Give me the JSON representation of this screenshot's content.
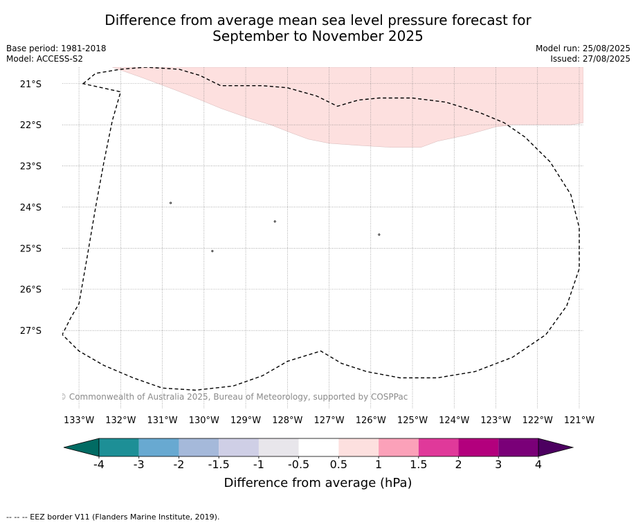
{
  "title": {
    "line1": "Difference from average mean sea level pressure forecast for",
    "line2": "September to November 2025"
  },
  "meta_left": {
    "base_period": "Base period: 1981-2018",
    "model": "Model: ACCESS-S2"
  },
  "meta_right": {
    "model_run": "Model run: 25/08/2025",
    "issued": "Issued: 27/08/2025"
  },
  "map": {
    "lon_range": [
      -133.4,
      -120.9
    ],
    "lat_range": [
      -28.9,
      -20.6
    ],
    "lat_ticks": [
      -21,
      -22,
      -23,
      -24,
      -25,
      -26,
      -27
    ],
    "lat_tick_labels": [
      "21°S",
      "22°S",
      "23°S",
      "24°S",
      "25°S",
      "26°S",
      "27°S"
    ],
    "lon_ticks": [
      -133,
      -132,
      -131,
      -130,
      -129,
      -128,
      -127,
      -126,
      -125,
      -124,
      -123,
      -122,
      -121
    ],
    "lon_tick_labels": [
      "133°W",
      "132°W",
      "131°W",
      "130°W",
      "129°W",
      "128°W",
      "127°W",
      "126°W",
      "125°W",
      "124°W",
      "123°W",
      "122°W",
      "121°W"
    ],
    "gridlines": true,
    "anomaly_region": {
      "category": "0.5 to 1",
      "color": "#fde0df",
      "boundary_lonlat": [
        [
          -132.2,
          -20.6
        ],
        [
          -131.5,
          -20.85
        ],
        [
          -130.7,
          -21.15
        ],
        [
          -130.2,
          -21.35
        ],
        [
          -129.6,
          -21.6
        ],
        [
          -128.9,
          -21.85
        ],
        [
          -128.4,
          -22.0
        ],
        [
          -127.9,
          -22.2
        ],
        [
          -127.5,
          -22.35
        ],
        [
          -127.0,
          -22.45
        ],
        [
          -126.3,
          -22.5
        ],
        [
          -125.5,
          -22.55
        ],
        [
          -124.8,
          -22.55
        ],
        [
          -124.4,
          -22.4
        ],
        [
          -123.7,
          -22.25
        ],
        [
          -123.0,
          -22.05
        ],
        [
          -122.6,
          -22.0
        ],
        [
          -121.8,
          -22.0
        ],
        [
          -121.2,
          -22.0
        ],
        [
          -120.9,
          -21.95
        ],
        [
          -120.9,
          -20.6
        ]
      ]
    },
    "eez_border_lonlat": [
      [
        -132.9,
        -21.0
      ],
      [
        -132.6,
        -20.75
      ],
      [
        -132.0,
        -20.65
      ],
      [
        -131.4,
        -20.6
      ],
      [
        -130.6,
        -20.65
      ],
      [
        -130.1,
        -20.8
      ],
      [
        -129.6,
        -21.05
      ],
      [
        -129.2,
        -21.05
      ],
      [
        -128.6,
        -21.05
      ],
      [
        -128.0,
        -21.1
      ],
      [
        -127.3,
        -21.3
      ],
      [
        -126.8,
        -21.55
      ],
      [
        -126.3,
        -21.4
      ],
      [
        -125.8,
        -21.35
      ],
      [
        -125.0,
        -21.35
      ],
      [
        -124.2,
        -21.45
      ],
      [
        -123.4,
        -21.7
      ],
      [
        -122.8,
        -21.95
      ],
      [
        -122.3,
        -22.3
      ],
      [
        -121.7,
        -22.9
      ],
      [
        -121.2,
        -23.7
      ],
      [
        -121.0,
        -24.5
      ],
      [
        -121.0,
        -25.5
      ],
      [
        -121.3,
        -26.4
      ],
      [
        -121.8,
        -27.1
      ],
      [
        -122.6,
        -27.65
      ],
      [
        -123.5,
        -28.0
      ],
      [
        -124.4,
        -28.15
      ],
      [
        -125.3,
        -28.15
      ],
      [
        -126.1,
        -28.0
      ],
      [
        -126.7,
        -27.8
      ],
      [
        -127.2,
        -27.5
      ],
      [
        -128.0,
        -27.75
      ],
      [
        -128.6,
        -28.1
      ],
      [
        -129.3,
        -28.35
      ],
      [
        -130.2,
        -28.45
      ],
      [
        -131.0,
        -28.4
      ],
      [
        -131.7,
        -28.15
      ],
      [
        -132.4,
        -27.85
      ],
      [
        -133.0,
        -27.5
      ],
      [
        -133.4,
        -27.1
      ],
      [
        -133.2,
        -26.7
      ],
      [
        -133.0,
        -26.35
      ],
      [
        -132.8,
        -25.2
      ],
      [
        -132.6,
        -24.0
      ],
      [
        -132.4,
        -22.9
      ],
      [
        -132.2,
        -21.9
      ],
      [
        -132.0,
        -21.2
      ]
    ],
    "specks_lonlat": [
      [
        -130.8,
        -23.9
      ],
      [
        -128.3,
        -24.35
      ],
      [
        -125.8,
        -24.67
      ],
      [
        -129.8,
        -25.07
      ]
    ],
    "copyright": "© Commonwealth of Australia 2025, Bureau of Meteorology, supported by COSPPac"
  },
  "colorbar": {
    "boundaries": [
      "-4",
      "-3",
      "-2",
      "-1.5",
      "-1",
      "-0.5",
      "0.5",
      "1",
      "1.5",
      "2",
      "3",
      "4"
    ],
    "colors": [
      "#1d8f96",
      "#68a9d1",
      "#a5b9da",
      "#cfcfe6",
      "#e8e6eb",
      "#ffffff",
      "#fde0df",
      "#fba1b9",
      "#e0399a",
      "#b3007d",
      "#7a0078"
    ],
    "under_color": "#016b63",
    "over_color": "#4c0060",
    "label": "Difference from average (hPa)"
  },
  "footnote": "--  --  -- EEZ border V11 (Flanders Marine Institute, 2019)."
}
